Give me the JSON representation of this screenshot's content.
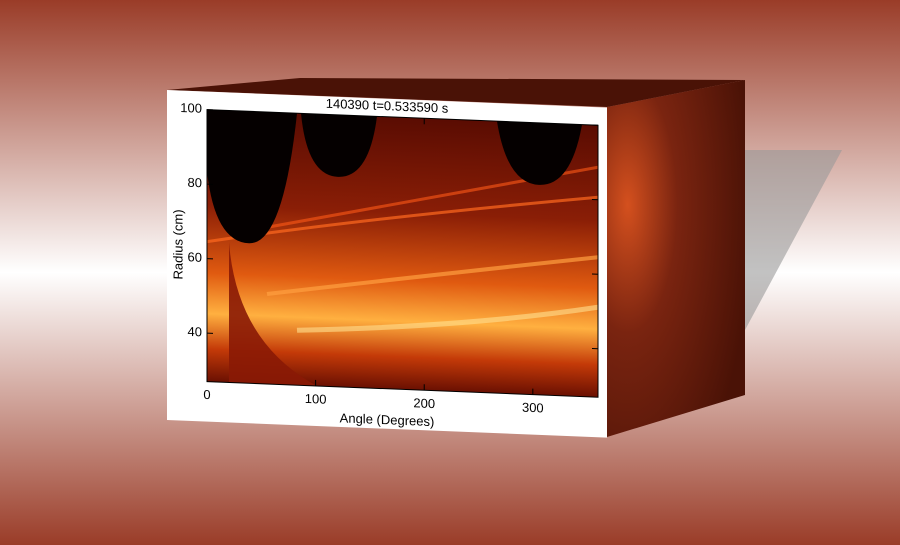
{
  "chart_data": {
    "type": "heatmap",
    "title": "140390 t=0.533590 s",
    "xlabel": "Angle (Degrees)",
    "ylabel": "Radius (cm)",
    "xlim": [
      0,
      360
    ],
    "xticks": [
      0,
      100,
      200,
      300
    ],
    "ylim": [
      27,
      100
    ],
    "yticks": [
      40,
      60,
      80,
      100
    ]
  }
}
